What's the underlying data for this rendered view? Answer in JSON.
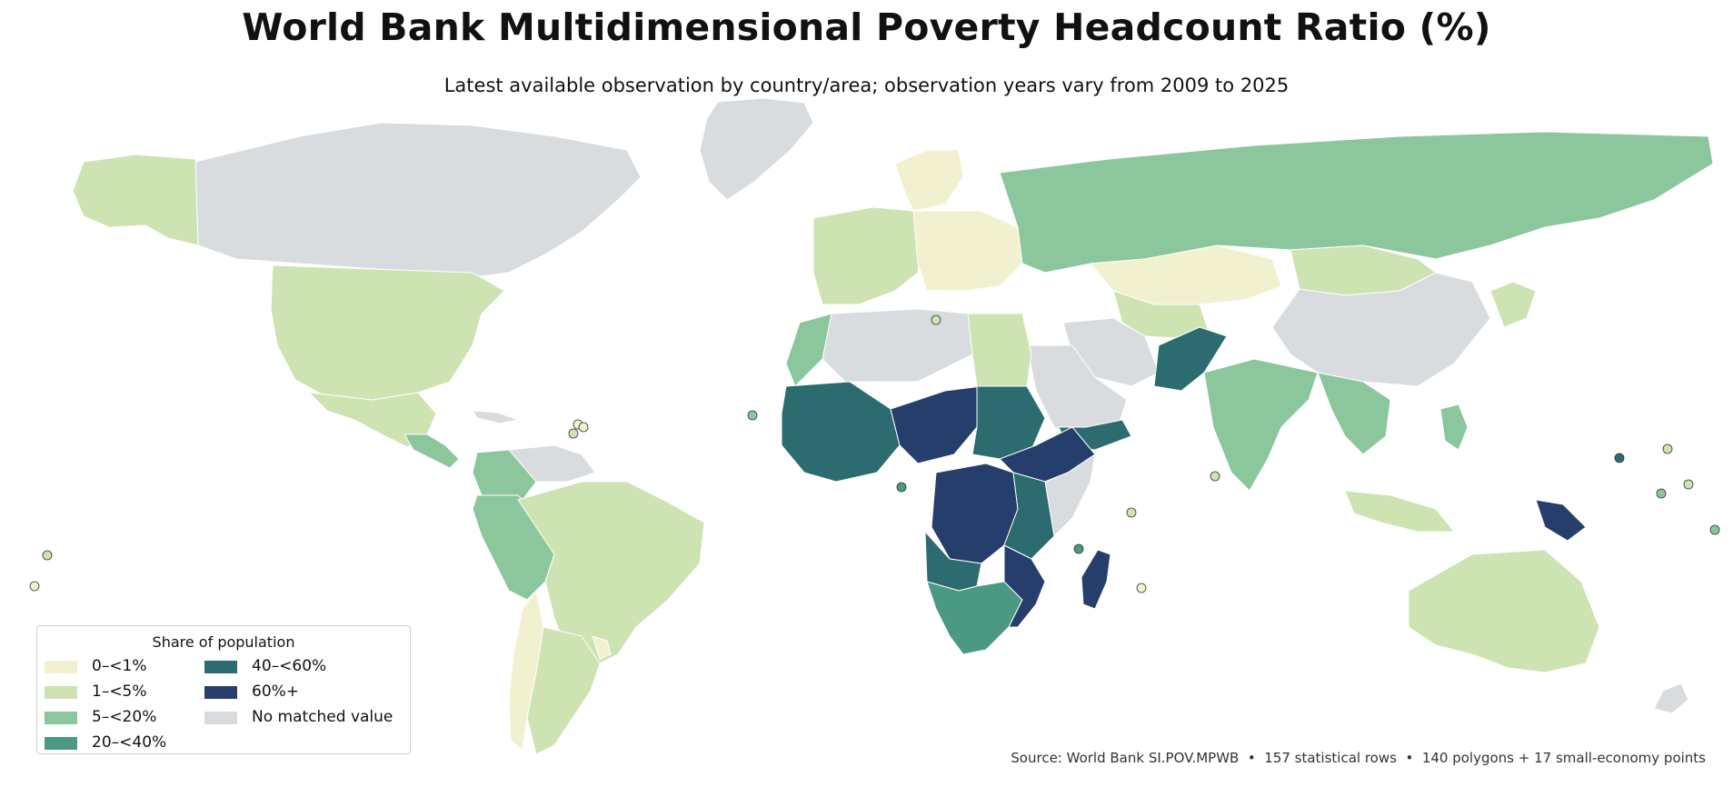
{
  "title": "World Bank Multidimensional Poverty Headcount Ratio (%)",
  "subtitle": "Latest available observation by country/area; observation years vary from 2009 to 2025",
  "legend": {
    "title": "Share of population",
    "items": [
      {
        "label": "0–<1%",
        "color": "#f2f1cf"
      },
      {
        "label": "1–<5%",
        "color": "#cde3b2"
      },
      {
        "label": "5–<20%",
        "color": "#8bc69d"
      },
      {
        "label": "20–<40%",
        "color": "#4b9983"
      },
      {
        "label": "40–<60%",
        "color": "#2c6b6f"
      },
      {
        "label": "60%+",
        "color": "#263e6b"
      },
      {
        "label": "No matched value",
        "color": "#d9dcdf"
      }
    ]
  },
  "source": "Source: World Bank SI.POV.MPWB  •  157 statistical rows  •  140 polygons + 17 small-economy points",
  "regions": [
    {
      "name": "Canada",
      "cls": 6
    },
    {
      "name": "Greenland",
      "cls": 6
    },
    {
      "name": "Alaska",
      "cls": 1
    },
    {
      "name": "United States",
      "cls": 1
    },
    {
      "name": "Mexico",
      "cls": 1
    },
    {
      "name": "Cuba",
      "cls": 6
    },
    {
      "name": "Central America",
      "cls": 2
    },
    {
      "name": "Colombia",
      "cls": 2
    },
    {
      "name": "Venezuela",
      "cls": 6
    },
    {
      "name": "Peru / Ecuador / Bolivia",
      "cls": 2
    },
    {
      "name": "Brazil",
      "cls": 1
    },
    {
      "name": "Chile",
      "cls": 0
    },
    {
      "name": "Argentina",
      "cls": 1
    },
    {
      "name": "Uruguay",
      "cls": 0
    },
    {
      "name": "Western Europe",
      "cls": 1
    },
    {
      "name": "Scandinavia",
      "cls": 0
    },
    {
      "name": "Eastern Europe",
      "cls": 0
    },
    {
      "name": "Russia",
      "cls": 2
    },
    {
      "name": "Kazakhstan",
      "cls": 0
    },
    {
      "name": "Mongolia",
      "cls": 1
    },
    {
      "name": "China",
      "cls": 6
    },
    {
      "name": "Central Asia",
      "cls": 1
    },
    {
      "name": "Iran",
      "cls": 6
    },
    {
      "name": "Saudi Arabia",
      "cls": 6
    },
    {
      "name": "Yemen",
      "cls": 4
    },
    {
      "name": "Pakistan / Afghanistan",
      "cls": 4
    },
    {
      "name": "India",
      "cls": 2
    },
    {
      "name": "Indochina",
      "cls": 2
    },
    {
      "name": "Indonesia",
      "cls": 1
    },
    {
      "name": "Philippines",
      "cls": 2
    },
    {
      "name": "Japan",
      "cls": 1
    },
    {
      "name": "Papua New Guinea",
      "cls": 5
    },
    {
      "name": "Australia",
      "cls": 1
    },
    {
      "name": "New Zealand",
      "cls": 6
    },
    {
      "name": "Libya / Algeria",
      "cls": 6
    },
    {
      "name": "Egypt",
      "cls": 1
    },
    {
      "name": "Morocco",
      "cls": 2
    },
    {
      "name": "West Africa",
      "cls": 4
    },
    {
      "name": "Sahel",
      "cls": 5
    },
    {
      "name": "Sudan",
      "cls": 4
    },
    {
      "name": "Ethiopia",
      "cls": 5
    },
    {
      "name": "Somalia",
      "cls": 6
    },
    {
      "name": "Congo Basin",
      "cls": 5
    },
    {
      "name": "East Africa",
      "cls": 4
    },
    {
      "name": "Angola",
      "cls": 4
    },
    {
      "name": "Southern Africa",
      "cls": 3
    },
    {
      "name": "Mozambique",
      "cls": 5
    },
    {
      "name": "Madagascar",
      "cls": 5
    }
  ],
  "small_economies": [
    {
      "name": "Malta",
      "cls": 1
    },
    {
      "name": "Cabo Verde",
      "cls": 2
    },
    {
      "name": "Antigua and Barbuda",
      "cls": 0
    },
    {
      "name": "Barbados",
      "cls": 0
    },
    {
      "name": "Grenada",
      "cls": 1
    },
    {
      "name": "Sao Tome and Principe",
      "cls": 3
    },
    {
      "name": "Maldives",
      "cls": 1
    },
    {
      "name": "Seychelles",
      "cls": 1
    },
    {
      "name": "Comoros",
      "cls": 3
    },
    {
      "name": "Mauritius",
      "cls": 0
    },
    {
      "name": "Solomon Islands",
      "cls": 4
    },
    {
      "name": "Nauru",
      "cls": 1
    },
    {
      "name": "Tuvalu",
      "cls": 1
    },
    {
      "name": "Kiribati",
      "cls": 2
    },
    {
      "name": "Vanuatu",
      "cls": 2
    },
    {
      "name": "Samoa",
      "cls": 1
    },
    {
      "name": "Tonga",
      "cls": 0
    }
  ]
}
